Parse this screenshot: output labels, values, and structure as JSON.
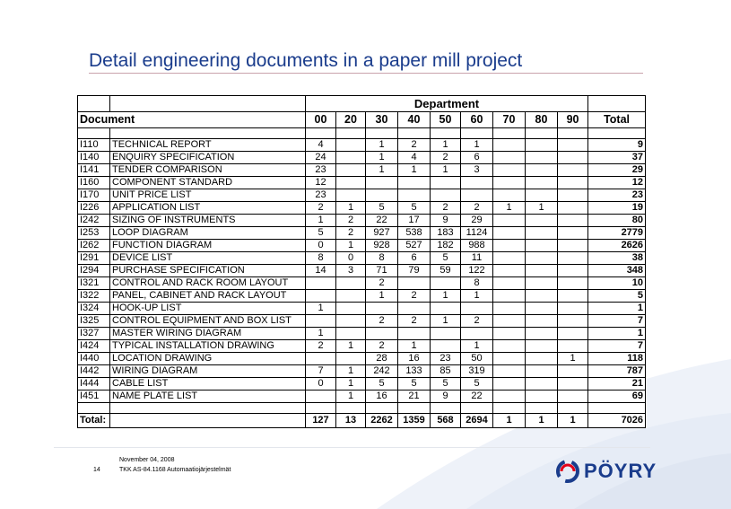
{
  "slide": {
    "title": "Detail engineering documents in a paper mill project"
  },
  "table": {
    "group_header": "Department",
    "document_header": "Document",
    "columns": [
      "00",
      "20",
      "30",
      "40",
      "50",
      "60",
      "70",
      "80",
      "90"
    ],
    "total_header": "Total",
    "rows": [
      {
        "code": "I110",
        "name": "TECHNICAL REPORT",
        "values": [
          "4",
          "",
          "1",
          "2",
          "1",
          "1",
          "",
          "",
          ""
        ],
        "total": "9"
      },
      {
        "code": "I140",
        "name": "ENQUIRY SPECIFICATION",
        "values": [
          "24",
          "",
          "1",
          "4",
          "2",
          "6",
          "",
          "",
          ""
        ],
        "total": "37"
      },
      {
        "code": "I141",
        "name": "TENDER COMPARISON",
        "values": [
          "23",
          "",
          "1",
          "1",
          "1",
          "3",
          "",
          "",
          ""
        ],
        "total": "29"
      },
      {
        "code": "I160",
        "name": "COMPONENT STANDARD",
        "values": [
          "12",
          "",
          "",
          "",
          "",
          "",
          "",
          "",
          ""
        ],
        "total": "12"
      },
      {
        "code": "I170",
        "name": "UNIT PRICE LIST",
        "values": [
          "23",
          "",
          "",
          "",
          "",
          "",
          "",
          "",
          ""
        ],
        "total": "23"
      },
      {
        "code": "I226",
        "name": "APPLICATION LIST",
        "values": [
          "2",
          "1",
          "5",
          "5",
          "2",
          "2",
          "1",
          "1",
          ""
        ],
        "total": "19"
      },
      {
        "code": "I242",
        "name": "SIZING OF INSTRUMENTS",
        "values": [
          "1",
          "2",
          "22",
          "17",
          "9",
          "29",
          "",
          "",
          ""
        ],
        "total": "80"
      },
      {
        "code": "I253",
        "name": "LOOP DIAGRAM",
        "values": [
          "5",
          "2",
          "927",
          "538",
          "183",
          "1124",
          "",
          "",
          ""
        ],
        "total": "2779"
      },
      {
        "code": "I262",
        "name": "FUNCTION DIAGRAM",
        "values": [
          "0",
          "1",
          "928",
          "527",
          "182",
          "988",
          "",
          "",
          ""
        ],
        "total": "2626"
      },
      {
        "code": "I291",
        "name": "DEVICE LIST",
        "values": [
          "8",
          "0",
          "8",
          "6",
          "5",
          "11",
          "",
          "",
          ""
        ],
        "total": "38"
      },
      {
        "code": "I294",
        "name": "PURCHASE SPECIFICATION",
        "values": [
          "14",
          "3",
          "71",
          "79",
          "59",
          "122",
          "",
          "",
          ""
        ],
        "total": "348"
      },
      {
        "code": "I321",
        "name": "CONTROL AND RACK ROOM LAYOUT",
        "values": [
          "",
          "",
          "2",
          "",
          "",
          "8",
          "",
          "",
          ""
        ],
        "total": "10"
      },
      {
        "code": "I322",
        "name": "PANEL, CABINET AND RACK LAYOUT",
        "values": [
          "",
          "",
          "1",
          "2",
          "1",
          "1",
          "",
          "",
          ""
        ],
        "total": "5"
      },
      {
        "code": "I324",
        "name": "HOOK-UP LIST",
        "values": [
          "1",
          "",
          "",
          "",
          "",
          "",
          "",
          "",
          ""
        ],
        "total": "1"
      },
      {
        "code": "I325",
        "name": "CONTROL EQUIPMENT AND BOX LIST",
        "values": [
          "",
          "",
          "2",
          "2",
          "1",
          "2",
          "",
          "",
          ""
        ],
        "total": "7"
      },
      {
        "code": "I327",
        "name": "MASTER WIRING DIAGRAM",
        "values": [
          "1",
          "",
          "",
          "",
          "",
          "",
          "",
          "",
          ""
        ],
        "total": "1"
      },
      {
        "code": "I424",
        "name": "TYPICAL INSTALLATION DRAWING",
        "values": [
          "2",
          "1",
          "2",
          "1",
          "",
          "1",
          "",
          "",
          ""
        ],
        "total": "7"
      },
      {
        "code": "I440",
        "name": "LOCATION DRAWING",
        "values": [
          "",
          "",
          "28",
          "16",
          "23",
          "50",
          "",
          "",
          "1"
        ],
        "total": "118"
      },
      {
        "code": "I442",
        "name": "WIRING DIAGRAM",
        "values": [
          "7",
          "1",
          "242",
          "133",
          "85",
          "319",
          "",
          "",
          ""
        ],
        "total": "787"
      },
      {
        "code": "I444",
        "name": "CABLE LIST",
        "values": [
          "0",
          "1",
          "5",
          "5",
          "5",
          "5",
          "",
          "",
          ""
        ],
        "total": "21"
      },
      {
        "code": "I451",
        "name": "NAME PLATE LIST",
        "values": [
          "",
          "1",
          "16",
          "21",
          "9",
          "22",
          "",
          "",
          ""
        ],
        "total": "69"
      }
    ],
    "totals_label": "Total:",
    "totals": [
      "127",
      "13",
      "2262",
      "1359",
      "568",
      "2694",
      "1",
      "1",
      "1"
    ],
    "grand_total": "7026"
  },
  "footer": {
    "date": "November 04, 2008",
    "page_number": "14",
    "course": "TKK AS-84.1168 Automaatiojärjestelmät"
  },
  "logo": {
    "text": "PÖYRY",
    "icon": "poyry-logo-icon"
  },
  "colors": {
    "title": "#1a3c8c",
    "logo": "#1a3c8c",
    "logo_accent": "#e2001a"
  }
}
